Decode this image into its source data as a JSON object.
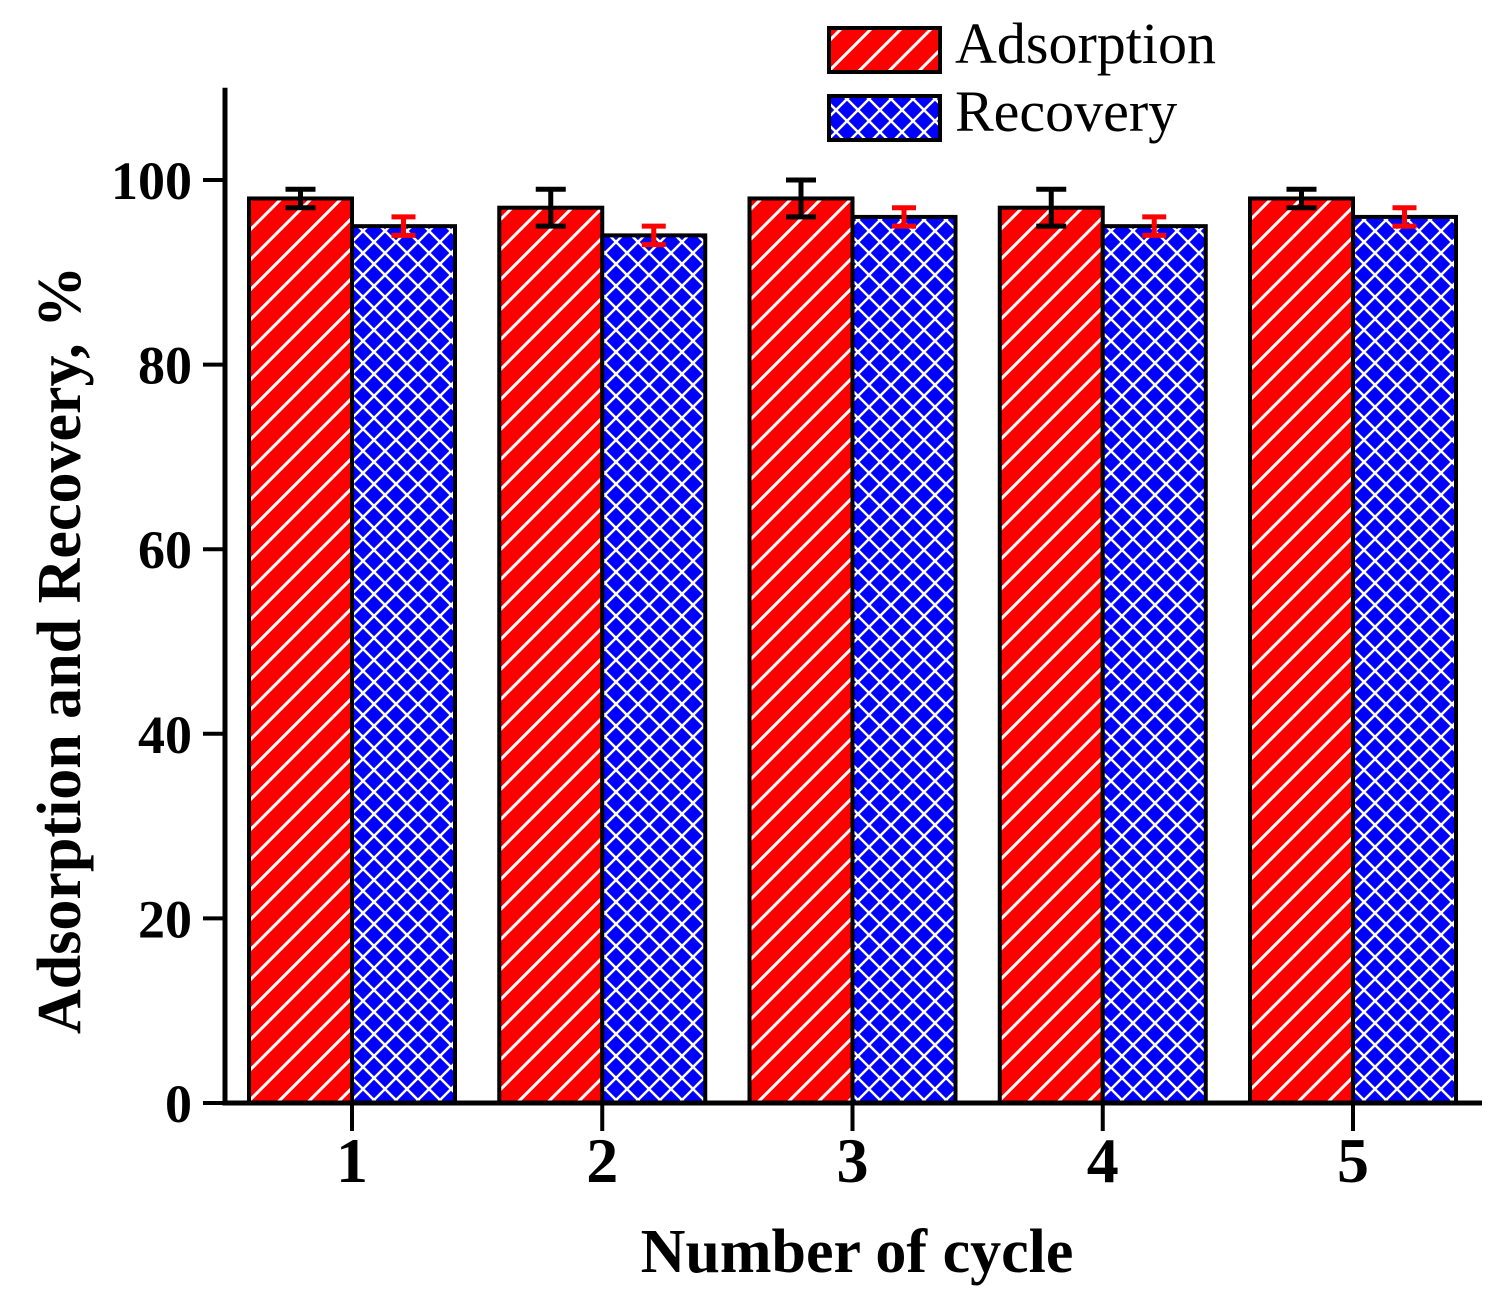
{
  "figure": {
    "background": "#ffffff",
    "plot_border": "none"
  },
  "legend": {
    "position": "top-center",
    "frame": false,
    "items": [
      {
        "label": "Adsorption",
        "swatch": "red-diagonal-hatch"
      },
      {
        "label": "Recovery",
        "swatch": "blue-cross-hatch"
      }
    ]
  },
  "chart_data": {
    "type": "bar",
    "title": "",
    "categories": [
      "1",
      "2",
      "3",
      "4",
      "5"
    ],
    "series": [
      {
        "name": "Adsorption",
        "color": "#ff0000",
        "hatch": "diagonal-forward",
        "hatch_color": "#ffffff",
        "error_color": "#000000",
        "values": [
          98,
          97,
          98,
          97,
          98
        ],
        "errors": [
          1,
          2,
          2,
          2,
          1
        ]
      },
      {
        "name": "Recovery",
        "color": "#0000ff",
        "hatch": "crosshatch",
        "hatch_color": "#ffffff",
        "error_color": "#ff0000",
        "values": [
          95,
          94,
          96,
          95,
          96
        ],
        "errors": [
          1,
          1,
          1,
          1,
          1
        ]
      }
    ],
    "xlabel": "Number of cycle",
    "ylabel": "Adsorption and Recovery, %",
    "yticks": [
      0,
      20,
      40,
      60,
      80,
      100
    ],
    "ylim": [
      0,
      110
    ],
    "bar_border_color": "#000000",
    "axis_color": "#000000",
    "grid": false,
    "legend_position": "top-center"
  }
}
